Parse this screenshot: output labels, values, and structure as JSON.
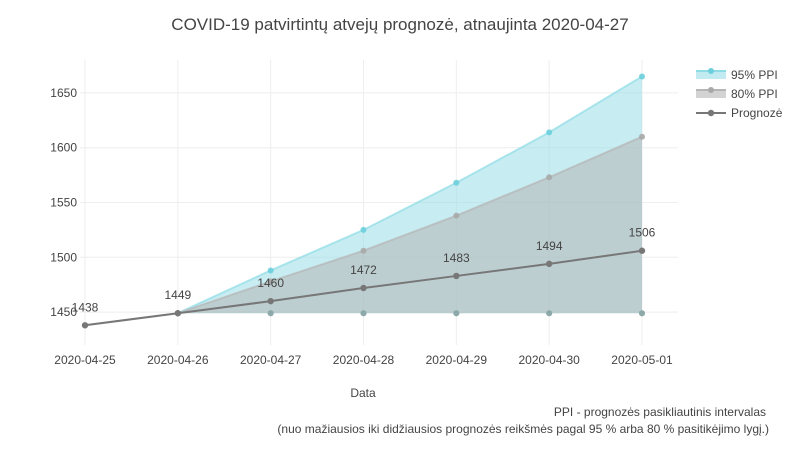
{
  "chart_data": {
    "type": "area",
    "title": "COVID-19 patvirtintų atvejų prognozė, atnaujinta 2020-04-27",
    "xlabel": "Data",
    "ylabel": "",
    "x": [
      "2020-04-25",
      "2020-04-26",
      "2020-04-27",
      "2020-04-28",
      "2020-04-29",
      "2020-04-30",
      "2020-05-01"
    ],
    "ylim": [
      1420,
      1680
    ],
    "yticks": [
      1450,
      1500,
      1550,
      1600,
      1650
    ],
    "grid": true,
    "legend_position": "top-right",
    "series": [
      {
        "name": "95% PPI",
        "kind": "band",
        "color": "#8fdbe5",
        "x": [
          "2020-04-26",
          "2020-04-27",
          "2020-04-28",
          "2020-04-29",
          "2020-04-30",
          "2020-05-01"
        ],
        "lower": [
          1449,
          1449,
          1449,
          1449,
          1449,
          1449
        ],
        "upper": [
          1449,
          1488,
          1525,
          1568,
          1614,
          1665
        ]
      },
      {
        "name": "80% PPI",
        "kind": "band",
        "color": "#b5b5b5",
        "x": [
          "2020-04-26",
          "2020-04-27",
          "2020-04-28",
          "2020-04-29",
          "2020-04-30",
          "2020-05-01"
        ],
        "lower": [
          1449,
          1449,
          1449,
          1449,
          1449,
          1449
        ],
        "upper": [
          1449,
          1478,
          1506,
          1538,
          1573,
          1610
        ]
      },
      {
        "name": "Prognozė",
        "kind": "line",
        "color": "#777777",
        "x": [
          "2020-04-25",
          "2020-04-26",
          "2020-04-27",
          "2020-04-28",
          "2020-04-29",
          "2020-04-30",
          "2020-05-01"
        ],
        "values": [
          1438,
          1449,
          1460,
          1472,
          1483,
          1494,
          1506
        ],
        "labels": [
          "1438",
          "1449",
          "1460",
          "1472",
          "1483",
          "1494",
          "1506"
        ]
      }
    ],
    "annotation_lines": [
      "PPI - prognozės pasikliautinis intervalas",
      "(nuo mažiausios iki didžiausios prognozės reikšmės pagal 95 % arba 80 % pasitikėjimo lygį.)"
    ]
  }
}
